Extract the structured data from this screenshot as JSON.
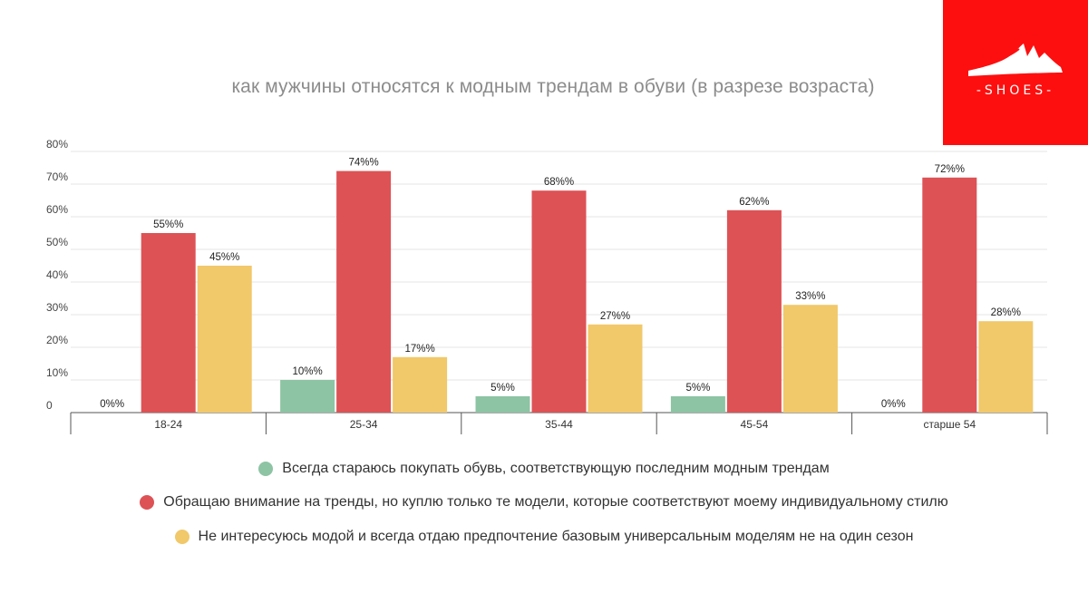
{
  "logo": {
    "text": "-SHOES-",
    "bg_color": "#fe0f0f",
    "icon": "shoe-sole-icon"
  },
  "chart_data": {
    "type": "bar",
    "title": "как мужчины относятся к модным трендам в обуви (в разрезе возраста)",
    "xlabel": "",
    "ylabel": "",
    "categories": [
      "18-24",
      "25-34",
      "35-44",
      "45-54",
      "старше 54"
    ],
    "y_ticks": [
      "0",
      "10%",
      "20%",
      "30%",
      "40%",
      "50%",
      "60%",
      "70%",
      "80%"
    ],
    "ylim": [
      0,
      80
    ],
    "grid": true,
    "legend_position": "bottom",
    "series": [
      {
        "name": "Всегда стараюсь покупать обувь, соответствующую последним модным трендам",
        "color": "#8dc4a4",
        "values": [
          0,
          10,
          5,
          5,
          0
        ],
        "labels": [
          "0%%",
          "10%%",
          "5%%",
          "5%%",
          "0%%"
        ]
      },
      {
        "name": "Обращаю внимание на тренды, но куплю только те модели, которые соответствуют моему индивидуальному стилю",
        "color": "#dd5255",
        "values": [
          55,
          74,
          68,
          62,
          72
        ],
        "labels": [
          "55%%",
          "74%%",
          "68%%",
          "62%%",
          "72%%"
        ]
      },
      {
        "name": "Не интересуюсь модой и всегда отдаю предпочтение базовым универсальным моделям не на один сезон",
        "color": "#f1c86a",
        "values": [
          45,
          17,
          27,
          33,
          28
        ],
        "labels": [
          "45%%",
          "17%%",
          "27%%",
          "33%%",
          "28%%"
        ]
      }
    ]
  }
}
